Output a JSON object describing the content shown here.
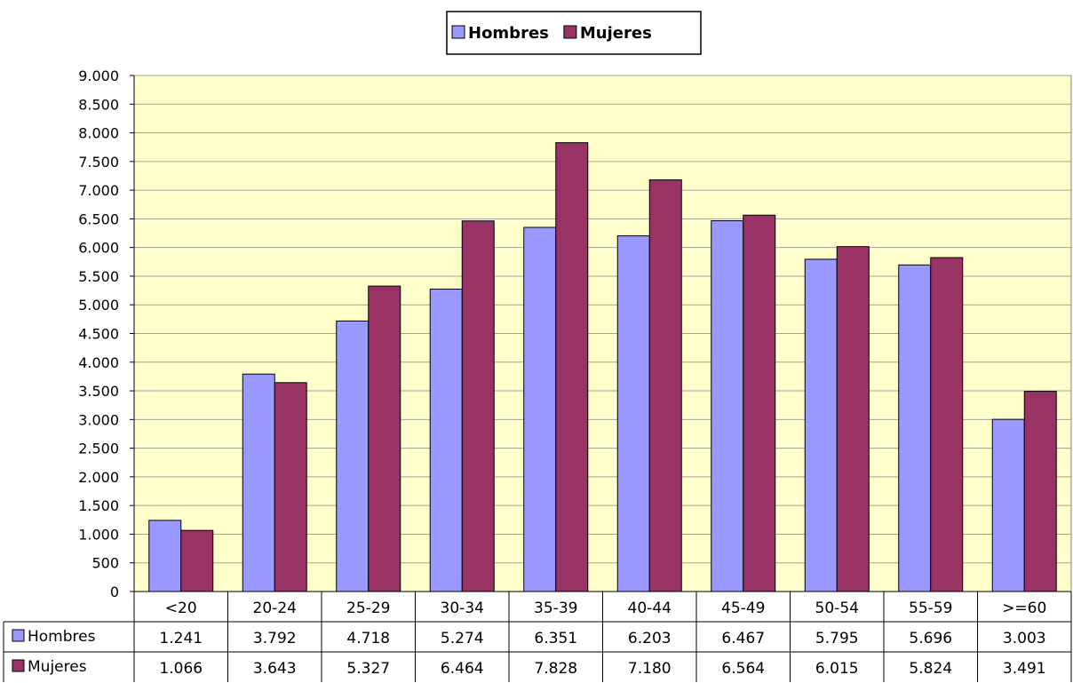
{
  "chart_data": {
    "type": "bar",
    "categories": [
      "<20",
      "20-24",
      "25-29",
      "30-34",
      "35-39",
      "40-44",
      "45-49",
      "50-54",
      "55-59",
      ">=60"
    ],
    "series": [
      {
        "name": "Hombres",
        "color": "#9999ff",
        "values": [
          1241,
          3792,
          4718,
          5274,
          6351,
          6203,
          6467,
          5795,
          5696,
          3003
        ],
        "labels": [
          "1.241",
          "3.792",
          "4.718",
          "5.274",
          "6.351",
          "6.203",
          "6.467",
          "5.795",
          "5.696",
          "3.003"
        ]
      },
      {
        "name": "Mujeres",
        "color": "#993366",
        "values": [
          1066,
          3643,
          5327,
          6464,
          7828,
          7180,
          6564,
          6015,
          5824,
          3491
        ],
        "labels": [
          "1.066",
          "3.643",
          "5.327",
          "6.464",
          "7.828",
          "7.180",
          "6.564",
          "6.015",
          "5.824",
          "3.491"
        ]
      }
    ],
    "ylim": [
      0,
      9000
    ],
    "yticks": [
      0,
      500,
      1000,
      1500,
      2000,
      2500,
      3000,
      3500,
      4000,
      4500,
      5000,
      5500,
      6000,
      6500,
      7000,
      7500,
      8000,
      8500,
      9000
    ],
    "ytick_labels": [
      "0",
      "500",
      "1.000",
      "1.500",
      "2.000",
      "2.500",
      "3.000",
      "3.500",
      "4.000",
      "4.500",
      "5.000",
      "5.500",
      "6.000",
      "6.500",
      "7.000",
      "7.500",
      "8.000",
      "8.500",
      "9.000"
    ],
    "grid": true,
    "legend_position": "top-center",
    "plot_background": "#ffffcc",
    "data_table": true
  }
}
